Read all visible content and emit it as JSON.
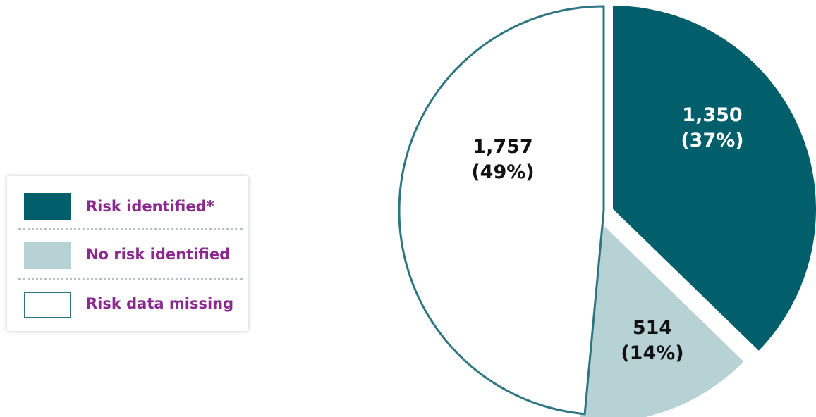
{
  "legend": {
    "items": [
      {
        "label": "Risk identified*",
        "fill": "#005f6b",
        "stroke": "#005f6b"
      },
      {
        "label": "No risk identified",
        "fill": "#b7d2d5",
        "stroke": "#b7d2d5"
      },
      {
        "label": "Risk data missing",
        "fill": "#ffffff",
        "stroke": "#2e7582"
      }
    ],
    "label_color": "#8a2a8e"
  },
  "chart_data": {
    "type": "pie",
    "title": "",
    "slices": [
      {
        "name": "Risk identified*",
        "value": 1350,
        "value_label": "1,350",
        "percent_label": "(37%)",
        "color": "#005f6b",
        "text_color": "#ffffff"
      },
      {
        "name": "No risk identified",
        "value": 514,
        "value_label": "514",
        "percent_label": "(14%)",
        "color": "#b7d2d5",
        "text_color": "#111111"
      },
      {
        "name": "Risk data missing",
        "value": 1757,
        "value_label": "1,757",
        "percent_label": "(49%)",
        "color": "#ffffff",
        "outline": "#2e7582",
        "text_color": "#111111"
      }
    ],
    "start_angle": "12 o'clock",
    "direction": "clockwise",
    "exploded": true,
    "legend_position": "left"
  }
}
